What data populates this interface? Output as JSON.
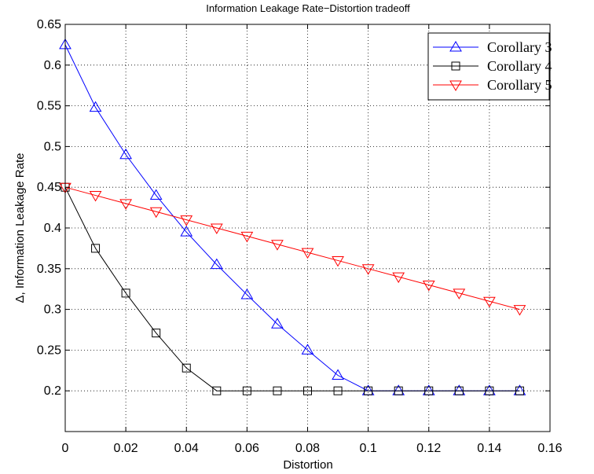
{
  "chart_data": {
    "type": "line",
    "title": "Information Leakage Rate−Distortion tradeoff",
    "xlabel": "Distortion",
    "ylabel": "Δ, Information Leakage Rate",
    "xlim": [
      0,
      0.16
    ],
    "ylim": [
      0.15,
      0.65
    ],
    "xticks": [
      0,
      0.02,
      0.04,
      0.06,
      0.08,
      0.1,
      0.12,
      0.14,
      0.16
    ],
    "xtick_labels": [
      "0",
      "0.02",
      "0.04",
      "0.06",
      "0.08",
      "0.1",
      "0.12",
      "0.14",
      "0.16"
    ],
    "yticks": [
      0.2,
      0.25,
      0.3,
      0.35,
      0.4,
      0.45,
      0.5,
      0.55,
      0.6,
      0.65
    ],
    "ytick_labels": [
      "0.2",
      "0.25",
      "0.3",
      "0.35",
      "0.4",
      "0.45",
      "0.5",
      "0.55",
      "0.6",
      "0.65"
    ],
    "grid": true,
    "legend_position": "top-right",
    "x": [
      0,
      0.01,
      0.02,
      0.03,
      0.04,
      0.05,
      0.06,
      0.07,
      0.08,
      0.09,
      0.1,
      0.11,
      0.12,
      0.13,
      0.14,
      0.15
    ],
    "series": [
      {
        "name": "Corollary 3",
        "color": "#0000ff",
        "marker": "triangle-up",
        "values": [
          0.625,
          0.548,
          0.49,
          0.44,
          0.395,
          0.355,
          0.318,
          0.282,
          0.25,
          0.219,
          0.2,
          0.2,
          0.2,
          0.2,
          0.2,
          0.2
        ]
      },
      {
        "name": "Corollary 4",
        "color": "#000000",
        "marker": "square",
        "values": [
          0.45,
          0.375,
          0.32,
          0.271,
          0.228,
          0.2,
          0.2,
          0.2,
          0.2,
          0.2,
          0.2,
          0.2,
          0.2,
          0.2,
          0.2,
          0.2
        ]
      },
      {
        "name": "Corollary 5",
        "color": "#ff0000",
        "marker": "triangle-down",
        "values": [
          0.45,
          0.44,
          0.43,
          0.42,
          0.41,
          0.4,
          0.39,
          0.38,
          0.37,
          0.36,
          0.35,
          0.34,
          0.33,
          0.32,
          0.31,
          0.3
        ]
      }
    ]
  }
}
